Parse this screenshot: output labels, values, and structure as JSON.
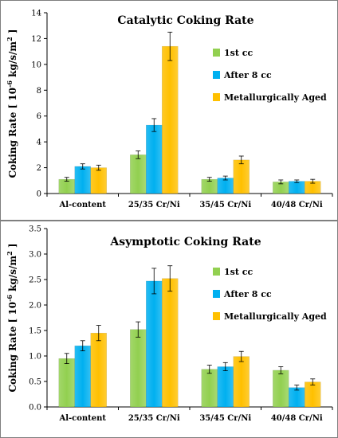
{
  "chart_data": [
    {
      "type": "bar",
      "title": "Catalytic Coking Rate",
      "ylabel_main": "Coking Rate [ 10",
      "ylabel_sup": "-6",
      "ylabel_unit": " kg/s/m",
      "ylabel_sup2": "2",
      "ylabel_end": " ]",
      "categories": [
        "Al-content",
        "25/35 Cr/Ni",
        "35/45 Cr/Ni",
        "40/48 Cr/Ni"
      ],
      "ylim": [
        0,
        14
      ],
      "yticks": [
        "0",
        "2",
        "4",
        "6",
        "8",
        "10",
        "12",
        "14"
      ],
      "ytick_values": [
        0,
        2,
        4,
        6,
        8,
        10,
        12,
        14
      ],
      "legend_position": "right",
      "series": [
        {
          "name": "1st cc",
          "color": "#92d050",
          "values": [
            1.1,
            3.0,
            1.1,
            0.9
          ],
          "errors": [
            0.15,
            0.3,
            0.15,
            0.15
          ]
        },
        {
          "name": "After 8 cc",
          "color": "#00b0f0",
          "values": [
            2.1,
            5.3,
            1.2,
            0.95
          ],
          "errors": [
            0.2,
            0.5,
            0.15,
            0.1
          ]
        },
        {
          "name": "Metallurgically Aged",
          "color": "#ffc000",
          "values": [
            2.0,
            11.4,
            2.6,
            0.95
          ],
          "errors": [
            0.2,
            1.1,
            0.3,
            0.15
          ]
        }
      ]
    },
    {
      "type": "bar",
      "title": "Asymptotic Coking Rate",
      "ylabel_main": "Coking Rate [ 10",
      "ylabel_sup": "-6",
      "ylabel_unit": " kg/s/m",
      "ylabel_sup2": "2",
      "ylabel_end": " ]",
      "categories": [
        "Al-content",
        "25/35 Cr/Ni",
        "35/45 Cr/Ni",
        "40/48 Cr/Ni"
      ],
      "ylim": [
        0,
        3.5
      ],
      "yticks": [
        "0.0",
        "0.5",
        "1.0",
        "1.5",
        "2.0",
        "2.5",
        "3.0",
        "3.5"
      ],
      "ytick_values": [
        0,
        0.5,
        1.0,
        1.5,
        2.0,
        2.5,
        3.0,
        3.5
      ],
      "legend_position": "right",
      "series": [
        {
          "name": "1st cc",
          "color": "#92d050",
          "values": [
            0.95,
            1.52,
            0.74,
            0.72
          ],
          "errors": [
            0.1,
            0.15,
            0.08,
            0.07
          ]
        },
        {
          "name": "After 8 cc",
          "color": "#00b0f0",
          "values": [
            1.2,
            2.47,
            0.79,
            0.38
          ],
          "errors": [
            0.1,
            0.25,
            0.08,
            0.05
          ]
        },
        {
          "name": "Metallurgically Aged",
          "color": "#ffc000",
          "values": [
            1.45,
            2.52,
            0.99,
            0.49
          ],
          "errors": [
            0.15,
            0.25,
            0.1,
            0.06
          ]
        }
      ]
    }
  ]
}
